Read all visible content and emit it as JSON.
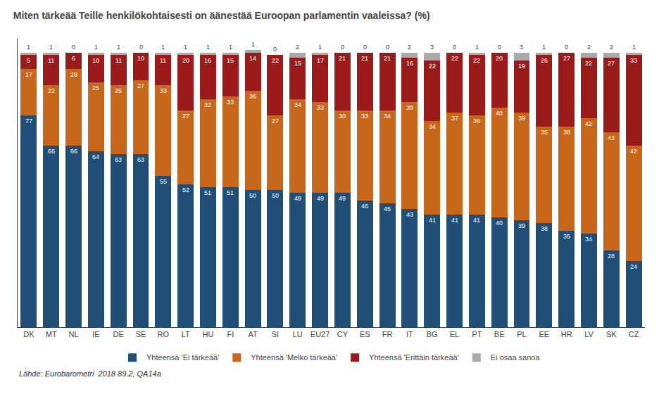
{
  "chart_data": {
    "type": "bar",
    "title": "Miten tärkeää Teille henkilökohtaisesti on äänestää Euroopan parlamentin vaaleissa? (%)",
    "footnote": "Lähde: Eurobarometri  2018 89.2, QA14a",
    "categories": [
      "DK",
      "MT",
      "NL",
      "IE",
      "DE",
      "SE",
      "RO",
      "LT",
      "HU",
      "FI",
      "AT",
      "SI",
      "LU",
      "EU27",
      "CY",
      "ES",
      "FR",
      "IT",
      "BG",
      "EL",
      "PT",
      "BE",
      "PL",
      "EE",
      "HR",
      "LV",
      "SK",
      "CZ"
    ],
    "series": [
      {
        "name": "Yhteensä 'Ei tärkeää'",
        "color": "#1F4E79",
        "values": [
          77,
          66,
          66,
          64,
          63,
          63,
          55,
          52,
          51,
          51,
          50,
          50,
          49,
          49,
          49,
          46,
          45,
          43,
          41,
          41,
          41,
          40,
          39,
          38,
          35,
          34,
          28,
          24
        ]
      },
      {
        "name": "Yhteensä 'Melko tärkeää'",
        "color": "#C8661A",
        "values": [
          17,
          22,
          28,
          25,
          25,
          27,
          33,
          27,
          32,
          33,
          36,
          27,
          34,
          33,
          30,
          33,
          34,
          39,
          34,
          37,
          36,
          40,
          39,
          35,
          38,
          42,
          43,
          42
        ]
      },
      {
        "name": "Yhteensä 'Erittäin tärkeää'",
        "color": "#9B1B1B",
        "values": [
          5,
          11,
          6,
          10,
          11,
          10,
          11,
          20,
          16,
          15,
          14,
          22,
          15,
          17,
          21,
          21,
          21,
          16,
          22,
          22,
          22,
          20,
          19,
          26,
          27,
          22,
          27,
          33
        ]
      },
      {
        "name": "Ei osaa sanoa",
        "color": "#AAAAAA",
        "values": [
          1,
          1,
          0,
          1,
          1,
          0,
          1,
          1,
          1,
          1,
          1,
          0,
          2,
          1,
          0,
          0,
          0,
          2,
          3,
          0,
          1,
          0,
          3,
          1,
          0,
          2,
          2,
          1
        ]
      }
    ],
    "stacked": true,
    "data_labels": true,
    "ylim": [
      0,
      105
    ],
    "grid": false,
    "legend": "bottom",
    "tick_labels": "x"
  }
}
